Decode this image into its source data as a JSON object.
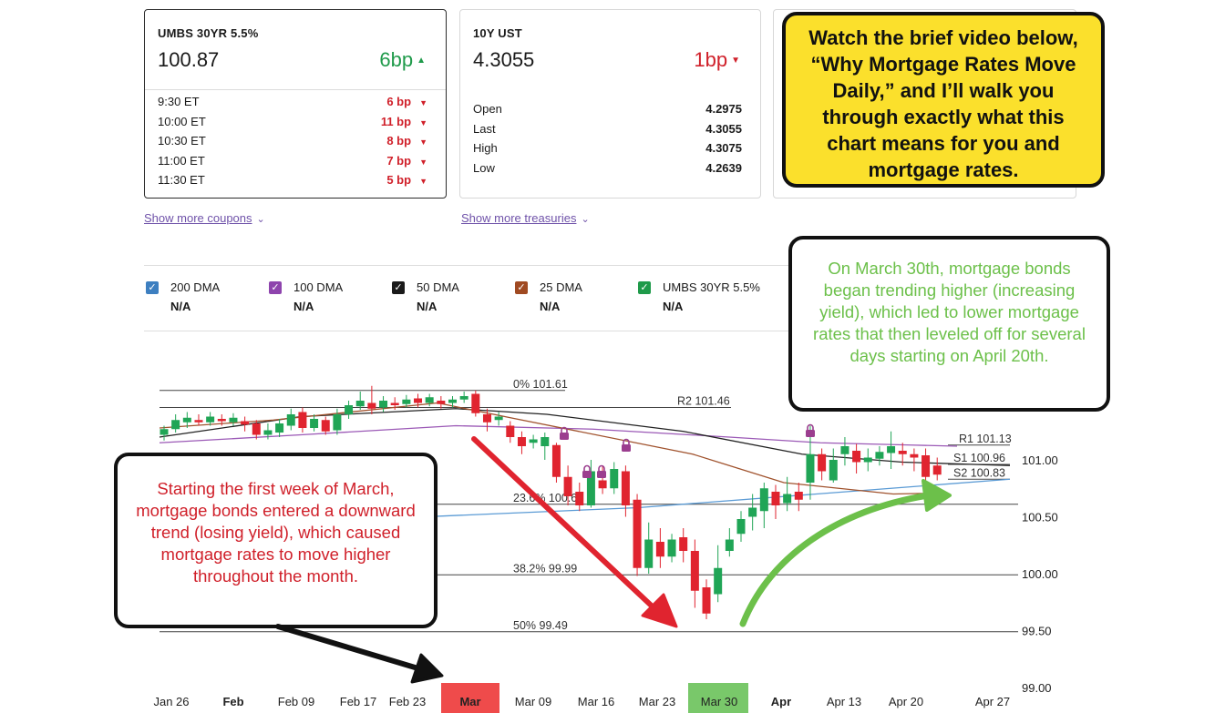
{
  "cards": [
    {
      "title": "UMBS 30YR 5.5%",
      "price": "100.87",
      "change": "6bp",
      "direction": "up",
      "rows": [
        {
          "label": "9:30 ET",
          "value": "6 bp"
        },
        {
          "label": "10:00 ET",
          "value": "11 bp"
        },
        {
          "label": "10:30 ET",
          "value": "8 bp"
        },
        {
          "label": "11:00 ET",
          "value": "7 bp"
        },
        {
          "label": "11:30 ET",
          "value": "5 bp"
        }
      ]
    },
    {
      "title": "10Y UST",
      "price": "4.3055",
      "change": "1bp",
      "direction": "down",
      "rows": [
        {
          "label": "Open",
          "value": "4.2975"
        },
        {
          "label": "Last",
          "value": "4.3055"
        },
        {
          "label": "High",
          "value": "4.3075"
        },
        {
          "label": "Low",
          "value": "4.2639"
        }
      ]
    }
  ],
  "links": {
    "more_coupons": "Show more coupons",
    "more_treasuries": "Show more treasuries"
  },
  "legend": [
    {
      "label": "200 DMA",
      "value": "N/A",
      "color": "#3d7fc0"
    },
    {
      "label": "100 DMA",
      "value": "N/A",
      "color": "#8e44ad"
    },
    {
      "label": "50 DMA",
      "value": "N/A",
      "color": "#1a1a1a"
    },
    {
      "label": "25 DMA",
      "value": "N/A",
      "color": "#a04a22"
    },
    {
      "label": "UMBS 30YR 5.5%",
      "value": "N/A",
      "color": "#1f9a4a"
    }
  ],
  "callouts": {
    "video": "Watch the brief video below, “Why Mortgage Rates Move Daily,” and I’ll walk you through exactly what this chart means for you and mortgage rates.",
    "march30": "On March 30th, mortgage bonds began trending higher (increasing yield), which led to lower mortgage rates that then leveled off for several days starting on April 20th.",
    "march": "Starting the first week of March, mortgage bonds entered a downward trend (losing yield), which caused mortgage rates to move higher throughout the month."
  },
  "chart_data": {
    "type": "candlestick",
    "title": "",
    "ylim": [
      99.0,
      102.0
    ],
    "y_ticks": [
      "99.00",
      "99.50",
      "100.00",
      "100.50",
      "101.00"
    ],
    "x_ticks": [
      "Jan 26",
      "Feb",
      "Feb 09",
      "Feb 17",
      "Feb 23",
      "Mar",
      "Mar 09",
      "Mar 16",
      "Mar 23",
      "Mar 30",
      "Apr",
      "Apr 13",
      "Apr 20",
      "Apr 27"
    ],
    "highlighted_ticks": {
      "Mar": "#ef4b4b",
      "Mar 30": "#79c86a"
    },
    "levels": [
      {
        "label": "0% 101.61",
        "value": 101.61
      },
      {
        "label": "R2 101.46",
        "value": 101.46
      },
      {
        "label": "R1 101.13",
        "value": 101.13
      },
      {
        "label": "S1 100.96",
        "value": 100.96
      },
      {
        "label": "S2 100.83",
        "value": 100.83
      },
      {
        "label": "23.6% 100.61",
        "value": 100.61
      },
      {
        "label": "38.2% 99.99",
        "value": 99.99
      },
      {
        "label": "50% 99.49",
        "value": 99.49
      }
    ],
    "candles": [
      [
        101.22,
        101.27,
        101.17,
        101.3
      ],
      [
        101.27,
        101.35,
        101.24,
        101.4
      ],
      [
        101.33,
        101.37,
        101.28,
        101.42
      ],
      [
        101.35,
        101.33,
        101.3,
        101.4
      ],
      [
        101.33,
        101.38,
        101.3,
        101.42
      ],
      [
        101.36,
        101.34,
        101.3,
        101.4
      ],
      [
        101.33,
        101.37,
        101.3,
        101.41
      ],
      [
        101.34,
        101.31,
        101.25,
        101.38
      ],
      [
        101.32,
        101.22,
        101.18,
        101.35
      ],
      [
        101.22,
        101.26,
        101.18,
        101.32
      ],
      [
        101.24,
        101.32,
        101.2,
        101.36
      ],
      [
        101.3,
        101.4,
        101.26,
        101.45
      ],
      [
        101.42,
        101.28,
        101.24,
        101.46
      ],
      [
        101.28,
        101.36,
        101.25,
        101.4
      ],
      [
        101.35,
        101.25,
        101.22,
        101.38
      ],
      [
        101.26,
        101.4,
        101.22,
        101.45
      ],
      [
        101.4,
        101.48,
        101.36,
        101.52
      ],
      [
        101.47,
        101.52,
        101.44,
        101.6
      ],
      [
        101.5,
        101.45,
        101.4,
        101.65
      ],
      [
        101.46,
        101.52,
        101.42,
        101.56
      ],
      [
        101.5,
        101.48,
        101.44,
        101.55
      ],
      [
        101.49,
        101.53,
        101.46,
        101.57
      ],
      [
        101.54,
        101.5,
        101.46,
        101.58
      ],
      [
        101.5,
        101.55,
        101.47,
        101.58
      ],
      [
        101.52,
        101.49,
        101.45,
        101.56
      ],
      [
        101.5,
        101.53,
        101.46,
        101.56
      ],
      [
        101.53,
        101.56,
        101.5,
        101.6
      ],
      [
        101.58,
        101.41,
        101.38,
        101.61
      ],
      [
        101.4,
        101.33,
        101.25,
        101.45
      ],
      [
        101.35,
        101.38,
        101.3,
        101.42
      ],
      [
        101.3,
        101.2,
        101.15,
        101.34
      ],
      [
        101.2,
        101.12,
        101.05,
        101.25
      ],
      [
        101.15,
        101.18,
        101.1,
        101.22
      ],
      [
        101.12,
        101.2,
        101.0,
        101.24
      ],
      [
        101.13,
        100.85,
        100.8,
        101.15
      ],
      [
        100.85,
        100.68,
        100.6,
        100.95
      ],
      [
        100.72,
        100.6,
        100.55,
        100.8
      ],
      [
        100.6,
        100.9,
        100.58,
        101.0
      ],
      [
        100.82,
        100.75,
        100.7,
        100.95
      ],
      [
        100.75,
        100.92,
        100.7,
        100.98
      ],
      [
        100.9,
        100.6,
        100.5,
        100.95
      ],
      [
        100.65,
        100.05,
        99.98,
        100.7
      ],
      [
        100.05,
        100.3,
        100.0,
        100.45
      ],
      [
        100.28,
        100.15,
        100.05,
        100.4
      ],
      [
        100.15,
        100.3,
        100.1,
        100.35
      ],
      [
        100.32,
        100.2,
        100.1,
        100.4
      ],
      [
        100.2,
        99.85,
        99.7,
        100.3
      ],
      [
        99.88,
        99.65,
        99.6,
        99.95
      ],
      [
        99.82,
        100.05,
        99.75,
        100.25
      ],
      [
        100.2,
        100.3,
        100.15,
        100.4
      ],
      [
        100.35,
        100.48,
        100.28,
        100.55
      ],
      [
        100.5,
        100.58,
        100.38,
        100.7
      ],
      [
        100.55,
        100.75,
        100.4,
        100.8
      ],
      [
        100.72,
        100.6,
        100.48,
        100.78
      ],
      [
        100.62,
        100.7,
        100.55,
        100.85
      ],
      [
        100.72,
        100.65,
        100.55,
        100.8
      ],
      [
        100.8,
        101.05,
        100.65,
        101.3
      ],
      [
        101.05,
        100.9,
        100.82,
        101.1
      ],
      [
        100.82,
        101.0,
        100.8,
        101.1
      ],
      [
        101.05,
        101.12,
        100.95,
        101.2
      ],
      [
        101.08,
        100.98,
        100.88,
        101.14
      ],
      [
        100.98,
        101.02,
        100.9,
        101.1
      ],
      [
        101.01,
        101.07,
        100.95,
        101.12
      ],
      [
        101.06,
        101.12,
        100.92,
        101.25
      ],
      [
        101.08,
        101.05,
        100.95,
        101.15
      ],
      [
        101.05,
        101.02,
        100.9,
        101.1
      ],
      [
        101.04,
        100.85,
        100.82,
        101.1
      ],
      [
        100.95,
        100.87,
        100.82,
        101.02
      ]
    ],
    "series": [
      {
        "name": "200 DMA",
        "values": [
          100.4,
          100.58,
          100.83
        ]
      },
      {
        "name": "100 DMA",
        "values": [
          101.15,
          101.22,
          101.3,
          101.27,
          101.2,
          101.15,
          101.13,
          101.12
        ]
      },
      {
        "name": "50 DMA",
        "values": [
          101.2,
          101.38,
          101.45,
          101.4,
          101.25,
          101.05,
          100.98,
          100.95
        ]
      },
      {
        "name": "25 DMA",
        "values": [
          101.28,
          101.35,
          101.5,
          101.37,
          101.05,
          100.8,
          100.7,
          100.71
        ]
      }
    ]
  }
}
